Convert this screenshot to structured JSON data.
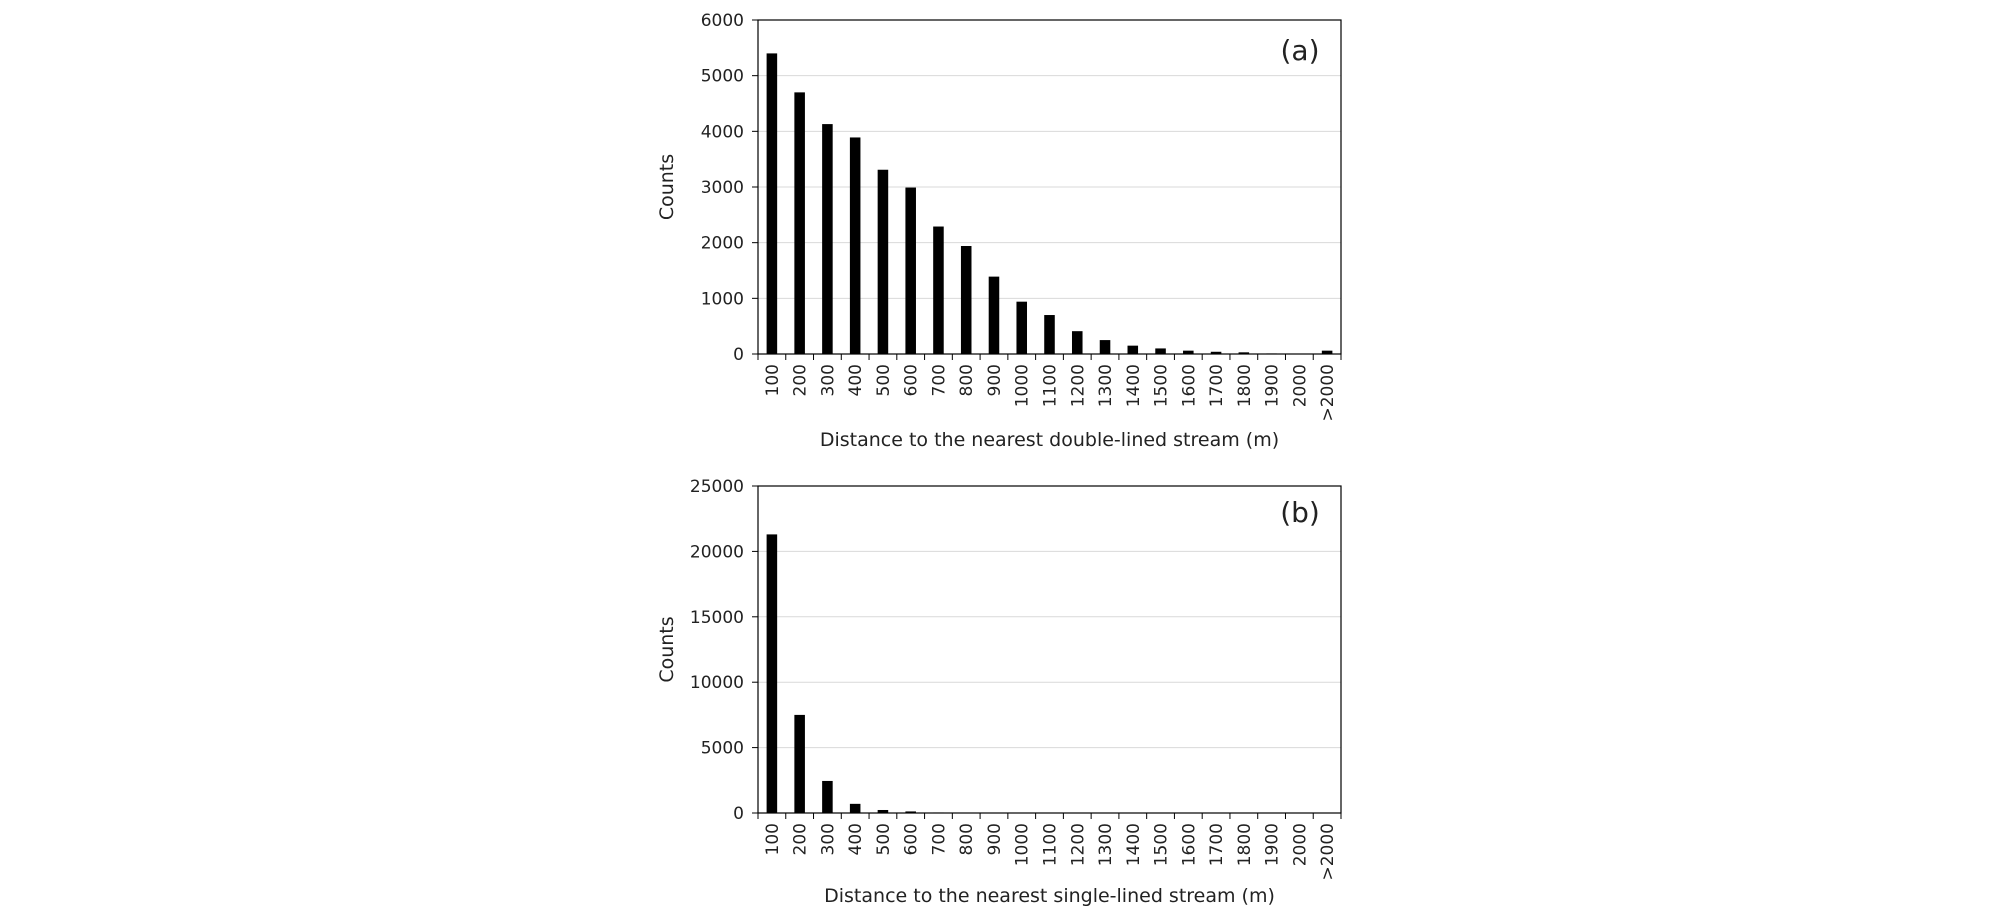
{
  "chart_data": [
    {
      "type": "bar",
      "panel_label": "(a)",
      "categories": [
        "100",
        "200",
        "300",
        "400",
        "500",
        "600",
        "700",
        "800",
        "900",
        "1000",
        "1100",
        "1200",
        "1300",
        "1400",
        "1500",
        "1600",
        "1700",
        "1800",
        "1900",
        "2000",
        ">2000"
      ],
      "values": [
        5400,
        4700,
        4130,
        3890,
        3310,
        2990,
        2290,
        1940,
        1390,
        940,
        700,
        410,
        250,
        150,
        100,
        60,
        40,
        30,
        10,
        5,
        60
      ],
      "xlabel": "Distance to the nearest double-lined stream (m)",
      "ylabel": "Counts",
      "ylim": [
        0,
        6000
      ],
      "yticks": [
        0,
        1000,
        2000,
        3000,
        4000,
        5000,
        6000
      ],
      "grid": true,
      "bar_color": "#000000"
    },
    {
      "type": "bar",
      "panel_label": "(b)",
      "categories": [
        "100",
        "200",
        "300",
        "400",
        "500",
        "600",
        "700",
        "800",
        "900",
        "1000",
        "1100",
        "1200",
        "1300",
        "1400",
        "1500",
        "1600",
        "1700",
        "1800",
        "1900",
        "2000",
        ">2000"
      ],
      "values": [
        21300,
        7500,
        2450,
        700,
        230,
        120,
        40,
        20,
        10,
        5,
        5,
        5,
        0,
        0,
        0,
        0,
        0,
        0,
        0,
        0,
        0
      ],
      "xlabel": "Distance to the nearest single-lined stream (m)",
      "ylabel": "Counts",
      "ylim": [
        0,
        25000
      ],
      "yticks": [
        0,
        5000,
        10000,
        15000,
        20000,
        25000
      ],
      "grid": true,
      "bar_color": "#000000"
    }
  ]
}
